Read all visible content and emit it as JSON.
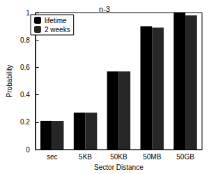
{
  "chart_data": {
    "type": "bar",
    "title": "n-3",
    "x_label": "Sector Distance",
    "y_label": "Probability",
    "categories": [
      "sec",
      "5KB",
      "50KB",
      "50MB",
      "50GB"
    ],
    "series": [
      {
        "name": "lifetime",
        "color": "#000000",
        "values": [
          0.21,
          0.27,
          0.57,
          0.9,
          1.0
        ]
      },
      {
        "name": "2 weeks",
        "color": "#262626",
        "values": [
          0.21,
          0.27,
          0.57,
          0.89,
          0.98
        ]
      }
    ],
    "ylim": [
      0,
      1
    ],
    "yticks": [
      0,
      0.2,
      0.4,
      0.6,
      0.8,
      1
    ],
    "grid": false,
    "legend": "upper left"
  }
}
